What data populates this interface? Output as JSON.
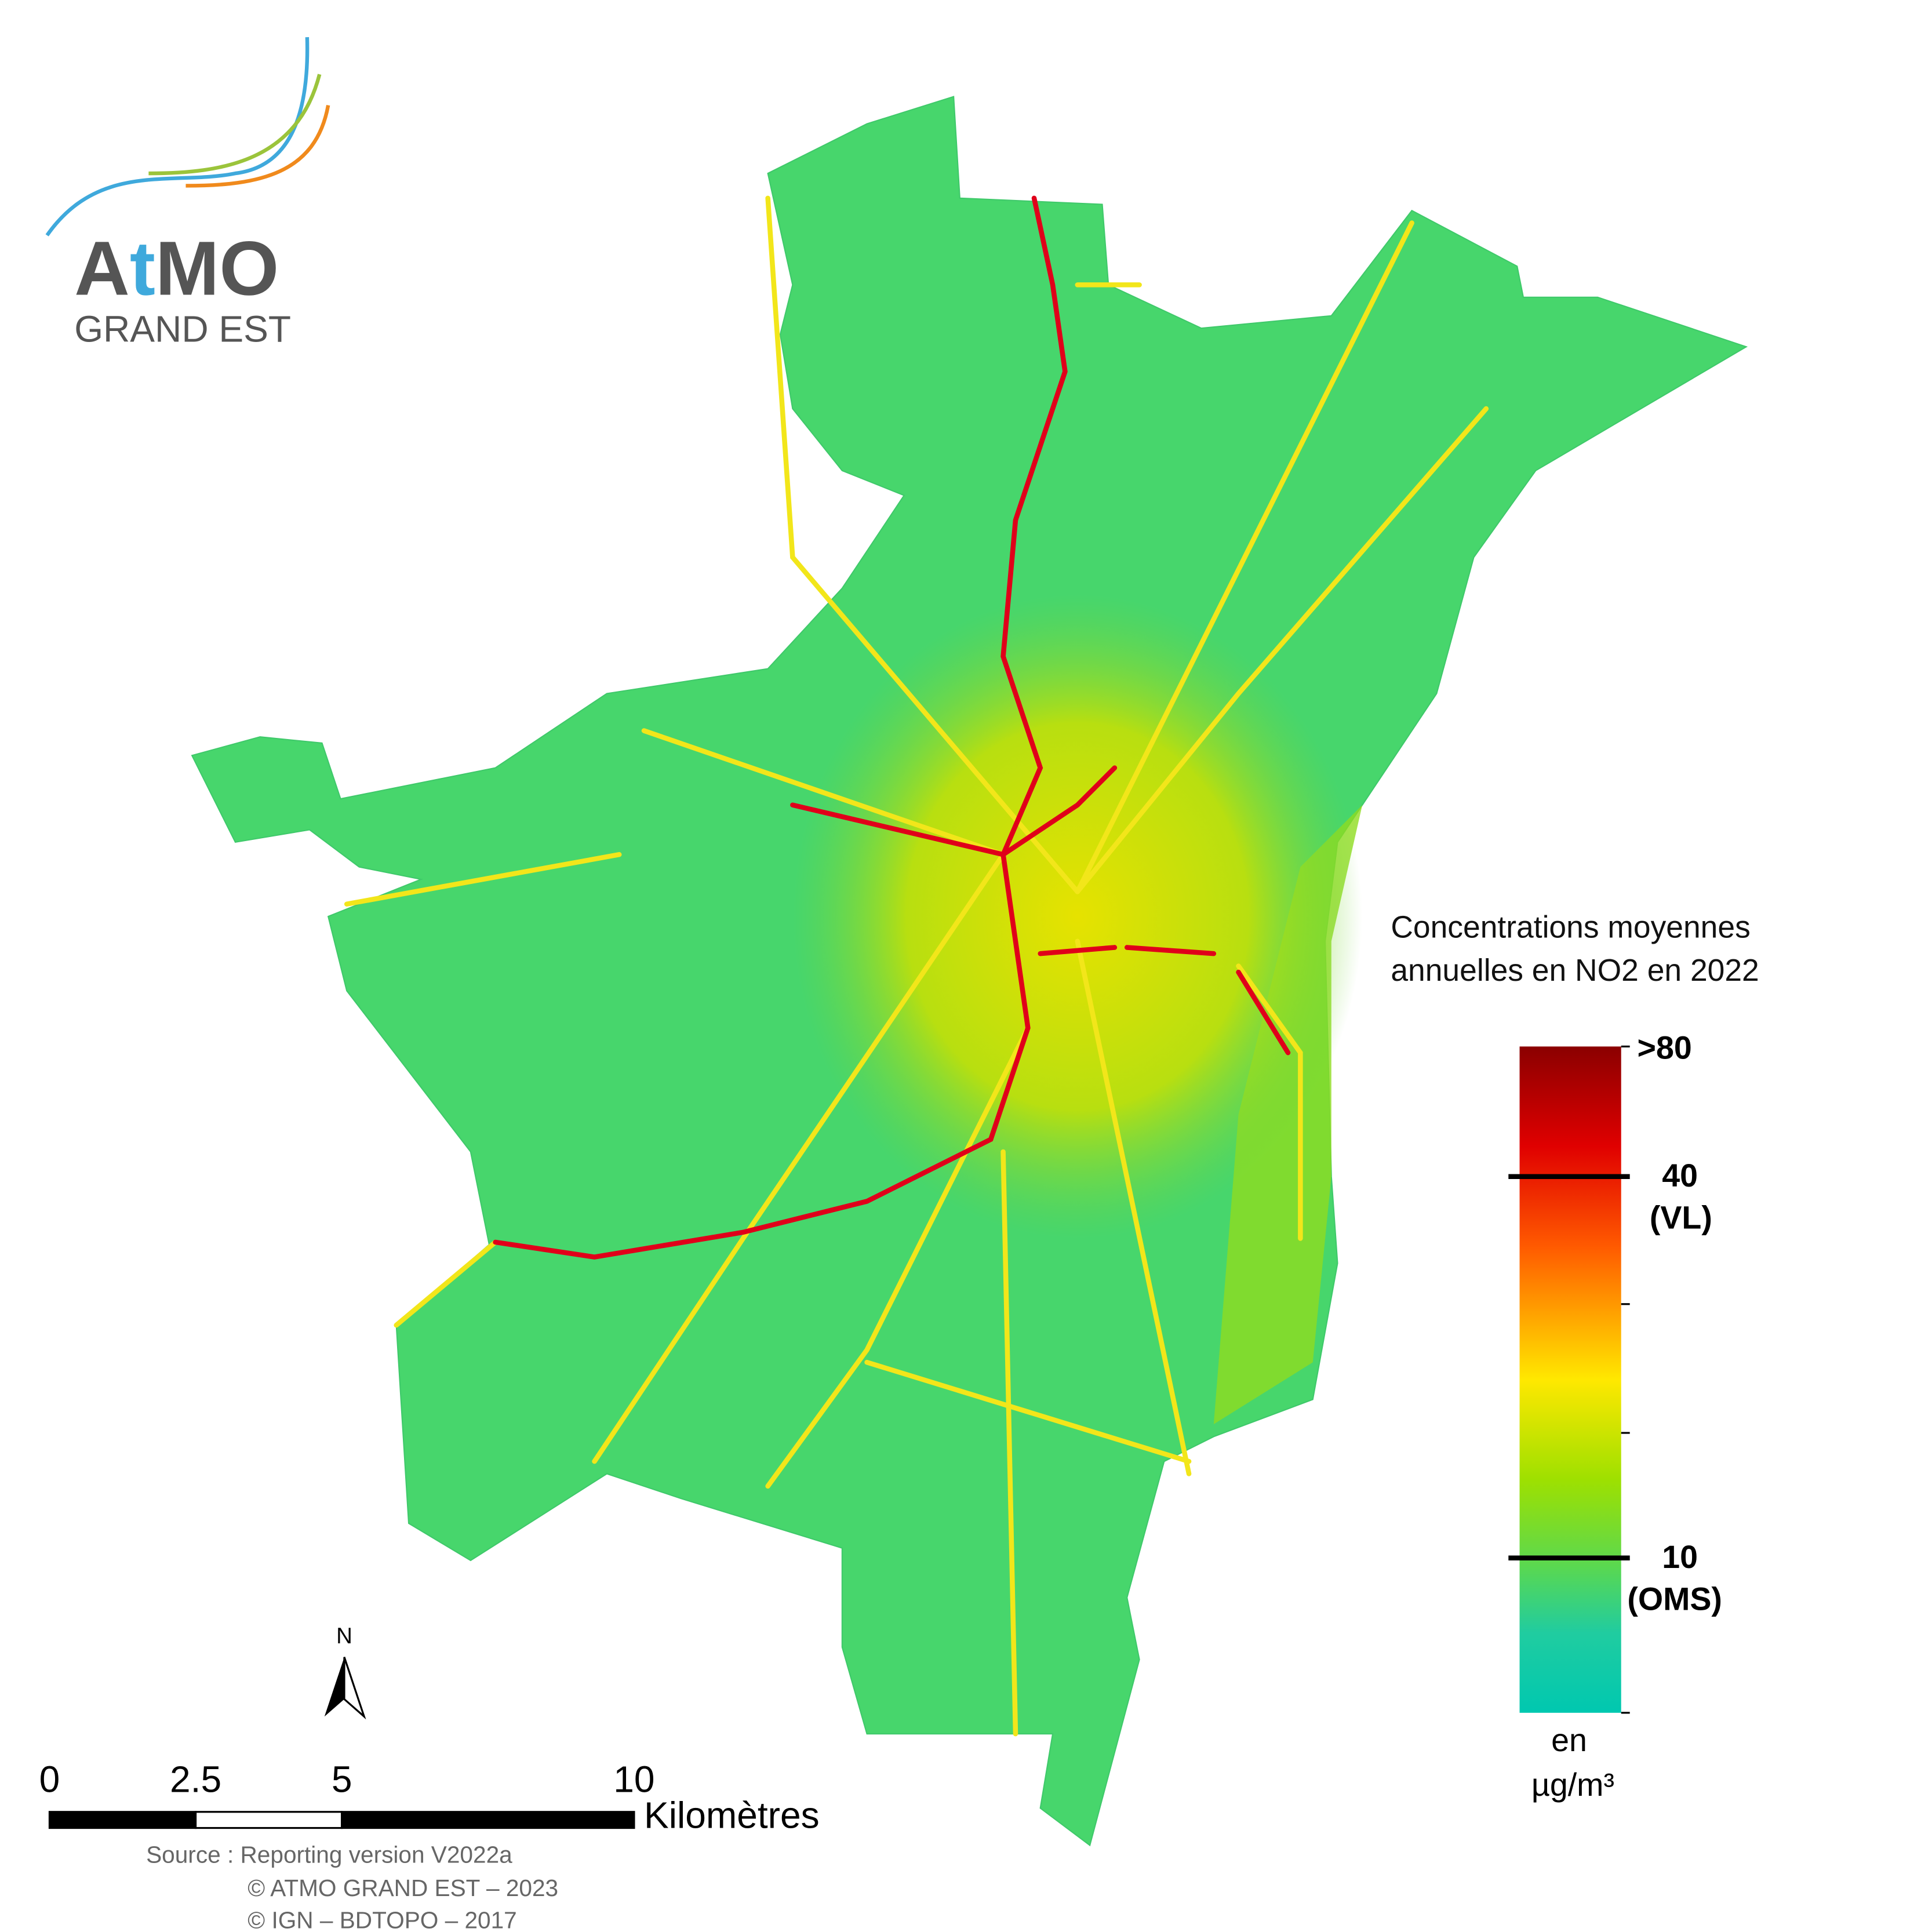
{
  "logo": {
    "name_parts": [
      "A",
      "t",
      "MO"
    ],
    "subtitle": "GRAND EST"
  },
  "legend": {
    "title_lines": [
      "Concentrations moyennes",
      "annuelles en NO2 en 2022"
    ],
    "labels": [
      ">80",
      "40",
      "(VL)",
      "10",
      "(OMS)"
    ],
    "unit_lines": [
      "en",
      "µg/m³"
    ]
  },
  "north": "N",
  "scale_bar": {
    "ticks": [
      0,
      2.5,
      5,
      10
    ],
    "unit": "Kilomètres"
  },
  "source_lines": [
    "Source : Reporting version V2022a",
    "© ATMO GRAND EST – 2023",
    "© IGN – BDTOPO – 2017"
  ]
}
